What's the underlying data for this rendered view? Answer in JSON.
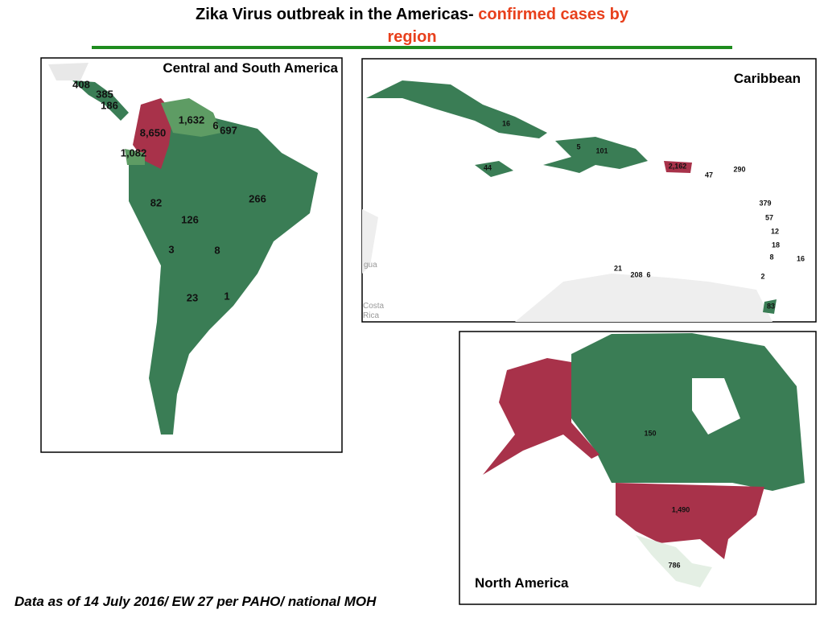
{
  "title": {
    "main": "Zika Virus outbreak in the Americas-",
    "highlight": "confirmed cases by region"
  },
  "panels": [
    {
      "title": "Central and South America",
      "labels": [
        "408",
        "385",
        "186",
        "8,650",
        "1,632",
        "6",
        "697",
        "1,082",
        "82",
        "266",
        "126",
        "3",
        "8",
        "23",
        "1"
      ]
    },
    {
      "title": "Caribbean",
      "labels": [
        "16",
        "5",
        "101",
        "44",
        "2,162",
        "47",
        "290",
        "379",
        "57",
        "12",
        "18",
        "8",
        "16",
        "2",
        "21",
        "208",
        "6",
        "83"
      ],
      "basemap_labels": [
        "gua",
        "Costa",
        "Rica"
      ]
    },
    {
      "title": "North America",
      "labels": [
        "150",
        "1,490",
        "786"
      ]
    }
  ],
  "footer": "Data as of 14 July 2016/ EW 27 per PAHO/ national MOH"
}
